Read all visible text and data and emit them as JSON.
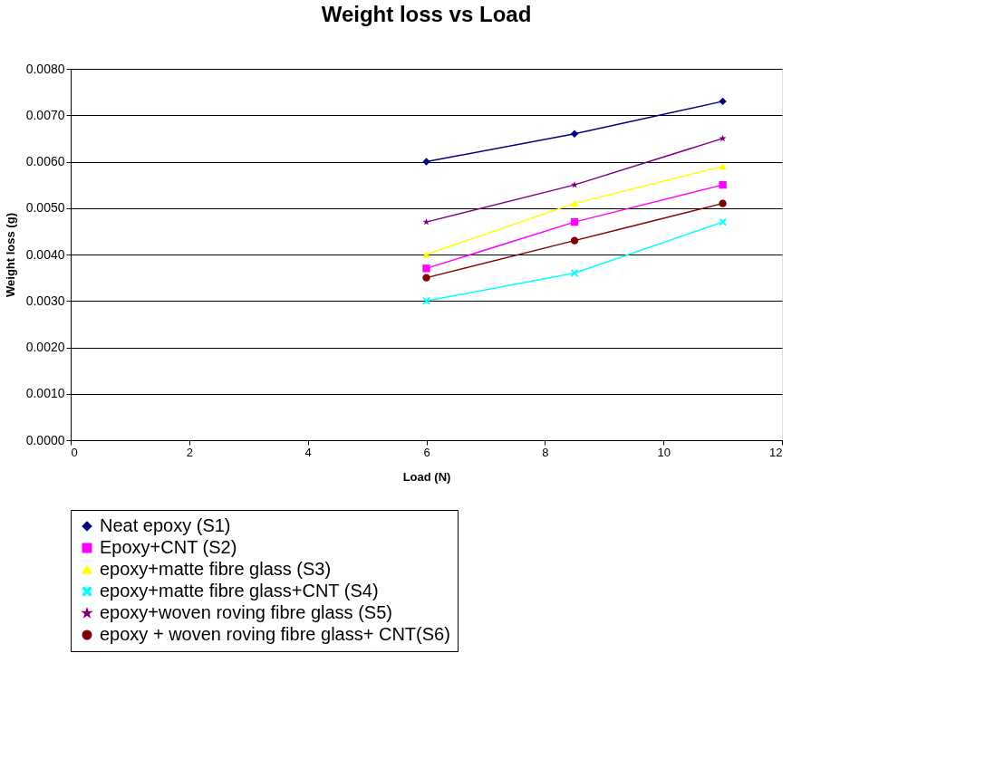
{
  "chart_data": {
    "type": "line",
    "title": "Weight loss vs Load",
    "xlabel": "Load (N)",
    "ylabel": "Weight loss (g)",
    "x": [
      6,
      8.5,
      11
    ],
    "xlim": [
      0,
      12
    ],
    "xticks": [
      0,
      2,
      4,
      6,
      8,
      10,
      12
    ],
    "ylim": [
      0,
      0.008
    ],
    "yticks": [
      {
        "value": 0,
        "label": "0.0000"
      },
      {
        "value": 0.001,
        "label": "0.0010"
      },
      {
        "value": 0.002,
        "label": "0.0020"
      },
      {
        "value": 0.003,
        "label": "0.0030"
      },
      {
        "value": 0.004,
        "label": "0.0040"
      },
      {
        "value": 0.005,
        "label": "0.0050"
      },
      {
        "value": 0.006,
        "label": "0.0060"
      },
      {
        "value": 0.007,
        "label": "0.0070"
      },
      {
        "value": 0.008,
        "label": "0.0080"
      }
    ],
    "grid": "y",
    "legend": "bottom",
    "series": [
      {
        "name": "Neat epoxy (S1)",
        "color": "#000080",
        "marker": "diamond",
        "values": [
          0.006,
          0.0066,
          0.0073
        ]
      },
      {
        "name": "Epoxy+CNT (S2)",
        "color": "#ff00ff",
        "marker": "square",
        "values": [
          0.0037,
          0.0047,
          0.0055
        ]
      },
      {
        "name": "epoxy+matte fibre glass (S3)",
        "color": "#ffff00",
        "marker": "triangle",
        "values": [
          0.004,
          0.0051,
          0.0059
        ]
      },
      {
        "name": "epoxy+matte fibre glass+CNT (S4)",
        "color": "#00ffff",
        "marker": "cross",
        "values": [
          0.003,
          0.0036,
          0.0047
        ]
      },
      {
        "name": "epoxy+woven roving fibre glass (S5)",
        "color": "#800080",
        "marker": "star",
        "values": [
          0.0047,
          0.0055,
          0.0065
        ]
      },
      {
        "name": "epoxy + woven roving fibre glass+ CNT(S6)",
        "color": "#800000",
        "marker": "circle",
        "values": [
          0.0035,
          0.0043,
          0.0051
        ]
      }
    ]
  }
}
